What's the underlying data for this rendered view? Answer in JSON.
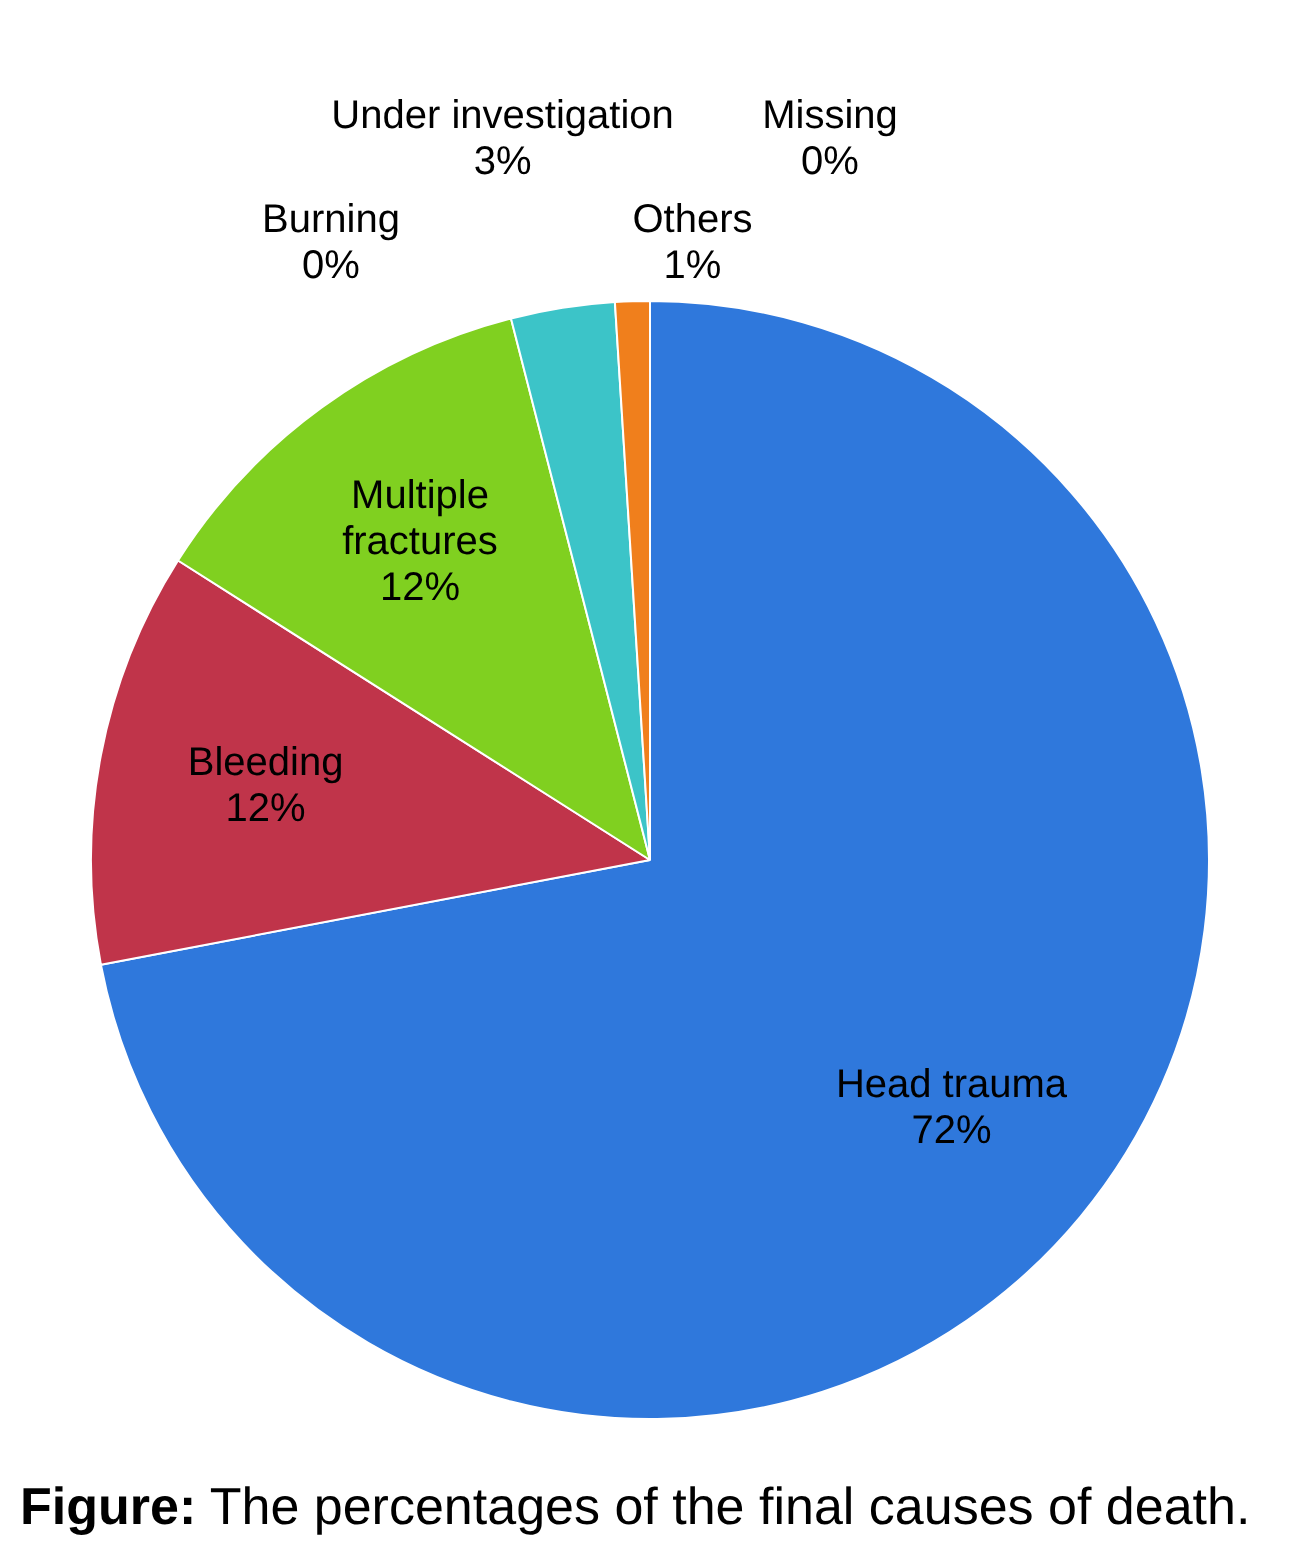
{
  "chart_data": {
    "type": "pie",
    "categories": [
      "Head trauma",
      "Bleeding",
      "Multiple fractures",
      "Burning",
      "Under investigation",
      "Others",
      "Missing"
    ],
    "values": [
      72,
      12,
      12,
      0,
      3,
      1,
      0
    ],
    "value_labels": [
      "72%",
      "12%",
      "12%",
      "0%",
      "3%",
      "1%",
      "0%"
    ],
    "colors": [
      "#2f78dc",
      "#c0344a",
      "#80d020",
      "#7b4fd0",
      "#3cc4c8",
      "#f07f1c",
      "#8fc0f0"
    ],
    "legend": false,
    "annotations": [
      "Figure: The percentages of the final causes of death."
    ]
  }
}
